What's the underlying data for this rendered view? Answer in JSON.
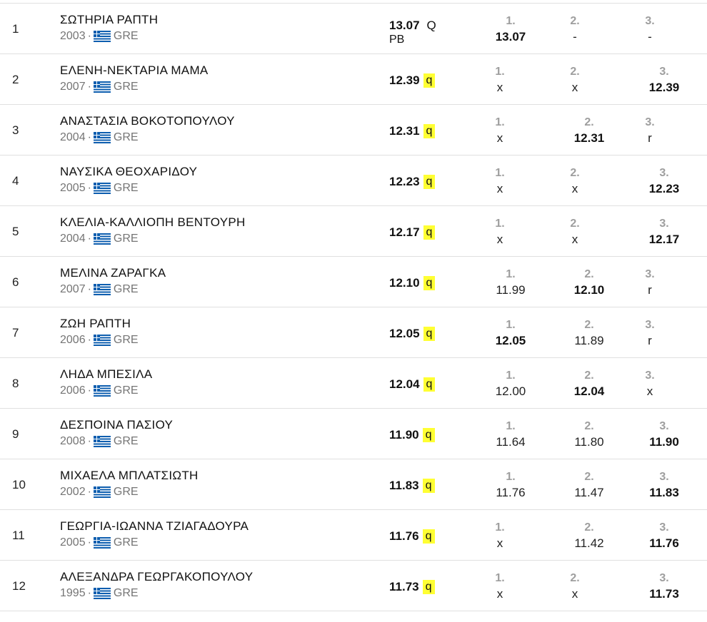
{
  "attempt_labels": [
    "1.",
    "2.",
    "3."
  ],
  "rows": [
    {
      "rank": "1",
      "name": "ΣΩΤΗΡΙΑ ΡΑΠΤΗ",
      "year": "2003",
      "country": "GRE",
      "mark": "13.07",
      "qual": "Q",
      "note": "PB",
      "attempts": [
        "13.07",
        "-",
        "-"
      ],
      "best": 0
    },
    {
      "rank": "2",
      "name": "ΕΛΕΝΗ-ΝΕΚΤΑΡΙΑ ΜΑΜΑ",
      "year": "2007",
      "country": "GRE",
      "mark": "12.39",
      "qual": "q",
      "attempts": [
        "x",
        "x",
        "12.39"
      ],
      "best": 2
    },
    {
      "rank": "3",
      "name": "ΑΝΑΣΤΑΣΙΑ ΒΟΚΟΤΟΠΟΥΛΟΥ",
      "year": "2004",
      "country": "GRE",
      "mark": "12.31",
      "qual": "q",
      "attempts": [
        "x",
        "12.31",
        "r"
      ],
      "best": 1
    },
    {
      "rank": "4",
      "name": "ΝΑΥΣΙΚΑ ΘΕΟΧΑΡΙΔΟΥ",
      "year": "2005",
      "country": "GRE",
      "mark": "12.23",
      "qual": "q",
      "attempts": [
        "x",
        "x",
        "12.23"
      ],
      "best": 2
    },
    {
      "rank": "5",
      "name": "ΚΛΕΛΙΑ-ΚΑΛΛΙΟΠΗ ΒΕΝΤΟΥΡΗ",
      "year": "2004",
      "country": "GRE",
      "mark": "12.17",
      "qual": "q",
      "attempts": [
        "x",
        "x",
        "12.17"
      ],
      "best": 2
    },
    {
      "rank": "6",
      "name": "ΜΕΛΙΝΑ ΖΑΡΑΓΚΑ",
      "year": "2007",
      "country": "GRE",
      "mark": "12.10",
      "qual": "q",
      "attempts": [
        "11.99",
        "12.10",
        "r"
      ],
      "best": 1
    },
    {
      "rank": "7",
      "name": "ΖΩΗ ΡΑΠΤΗ",
      "year": "2006",
      "country": "GRE",
      "mark": "12.05",
      "qual": "q",
      "attempts": [
        "12.05",
        "11.89",
        "r"
      ],
      "best": 0
    },
    {
      "rank": "8",
      "name": "ΛΗΔΑ ΜΠΕΣΙΛΑ",
      "year": "2006",
      "country": "GRE",
      "mark": "12.04",
      "qual": "q",
      "attempts": [
        "12.00",
        "12.04",
        "x"
      ],
      "best": 1
    },
    {
      "rank": "9",
      "name": "ΔΕΣΠΟΙΝΑ ΠΑΣΙΟΥ",
      "year": "2008",
      "country": "GRE",
      "mark": "11.90",
      "qual": "q",
      "attempts": [
        "11.64",
        "11.80",
        "11.90"
      ],
      "best": 2
    },
    {
      "rank": "10",
      "name": "ΜΙΧΑΕΛΑ ΜΠΛΑΤΣΙΩΤΗ",
      "year": "2002",
      "country": "GRE",
      "mark": "11.83",
      "qual": "q",
      "attempts": [
        "11.76",
        "11.47",
        "11.83"
      ],
      "best": 2
    },
    {
      "rank": "11",
      "name": "ΓΕΩΡΓΙΑ-ΙΩΑΝΝΑ ΤΖΙΑΓΑΔΟΥΡΑ",
      "year": "2005",
      "country": "GRE",
      "mark": "11.76",
      "qual": "q",
      "attempts": [
        "x",
        "11.42",
        "11.76"
      ],
      "best": 2
    },
    {
      "rank": "12",
      "name": "ΑΛΕΞΑΝΔΡΑ ΓΕΩΡΓΑΚΟΠΟΥΛΟΥ",
      "year": "1995",
      "country": "GRE",
      "mark": "11.73",
      "qual": "q",
      "attempts": [
        "x",
        "x",
        "11.73"
      ],
      "best": 2
    }
  ]
}
